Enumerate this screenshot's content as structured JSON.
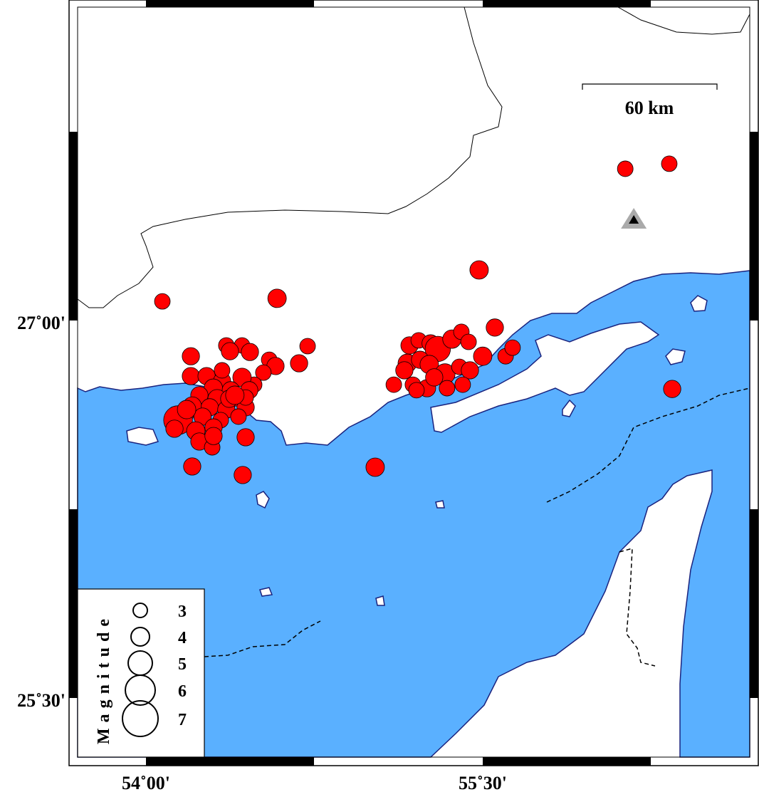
{
  "map": {
    "projection": "mercator",
    "lon_range": [
      53.7,
      56.7
    ],
    "lat_range": [
      25.25,
      27.95
    ],
    "land_color": "#ffffff",
    "sea_color": "#5ab0ff",
    "coast_color": "#1a237e",
    "event_color": "#ff0000",
    "station_color": "#000000",
    "axis": {
      "x_ticks": [
        {
          "value": 54.0,
          "label": "54˚00'"
        },
        {
          "value": 55.5,
          "label": "55˚30'"
        }
      ],
      "y_ticks": [
        {
          "value": 27.0,
          "label": "27˚00'"
        },
        {
          "value": 25.5,
          "label": "25˚30'"
        }
      ]
    },
    "scale_bar": {
      "label": "60 km",
      "km": 60
    },
    "legend": {
      "title": "Magnitude",
      "entries": [
        {
          "mag": 3,
          "label": "3"
        },
        {
          "mag": 4,
          "label": "4"
        },
        {
          "mag": 5,
          "label": "5"
        },
        {
          "mag": 6,
          "label": "6"
        },
        {
          "mag": 7,
          "label": "7"
        }
      ]
    },
    "station": {
      "lon": 56.173,
      "lat": 27.402,
      "icon": "triangle-icon"
    },
    "events": [
      [
        54.073,
        27.076,
        3.5
      ],
      [
        54.584,
        27.088,
        4.0
      ],
      [
        55.484,
        27.201,
        4.0
      ],
      [
        56.135,
        27.603,
        3.5
      ],
      [
        56.331,
        27.623,
        3.5
      ],
      [
        56.344,
        26.728,
        3.8
      ],
      [
        55.021,
        26.417,
        4.0
      ],
      [
        54.206,
        26.42,
        3.8
      ],
      [
        54.431,
        26.386,
        3.8
      ],
      [
        54.444,
        26.536,
        3.8
      ],
      [
        54.72,
        26.898,
        3.5
      ],
      [
        54.682,
        26.83,
        3.8
      ],
      [
        54.2,
        26.858,
        3.8
      ],
      [
        54.2,
        26.779,
        3.8
      ],
      [
        54.358,
        26.901,
        3.5
      ],
      [
        54.428,
        26.901,
        3.5
      ],
      [
        54.374,
        26.878,
        3.8
      ],
      [
        54.463,
        26.875,
        3.8
      ],
      [
        54.549,
        26.844,
        3.5
      ],
      [
        54.577,
        26.819,
        3.8
      ],
      [
        54.523,
        26.793,
        3.5
      ],
      [
        54.482,
        26.745,
        3.5
      ],
      [
        54.27,
        26.779,
        3.8
      ],
      [
        54.339,
        26.759,
        3.8
      ],
      [
        54.428,
        26.774,
        4.0
      ],
      [
        54.3,
        26.731,
        4.0
      ],
      [
        54.378,
        26.723,
        3.8
      ],
      [
        54.46,
        26.723,
        3.8
      ],
      [
        54.238,
        26.703,
        3.8
      ],
      [
        54.317,
        26.689,
        4.0
      ],
      [
        54.396,
        26.694,
        3.8
      ],
      [
        54.206,
        26.66,
        4.0
      ],
      [
        54.284,
        26.655,
        3.8
      ],
      [
        54.358,
        26.646,
        3.8
      ],
      [
        54.444,
        26.655,
        3.8
      ],
      [
        54.174,
        26.632,
        4.0
      ],
      [
        54.252,
        26.618,
        3.8
      ],
      [
        54.333,
        26.604,
        3.5
      ],
      [
        54.412,
        26.618,
        3.5
      ],
      [
        54.143,
        26.604,
        5.8
      ],
      [
        54.127,
        26.57,
        3.8
      ],
      [
        54.222,
        26.561,
        4.0
      ],
      [
        54.301,
        26.575,
        3.8
      ],
      [
        54.238,
        26.519,
        3.8
      ],
      [
        54.295,
        26.496,
        3.5
      ],
      [
        54.181,
        26.646,
        4.0
      ],
      [
        54.301,
        26.541,
        3.8
      ],
      [
        54.371,
        26.689,
        3.8
      ],
      [
        54.444,
        26.694,
        3.5
      ],
      [
        54.339,
        26.802,
        3.5
      ],
      [
        54.396,
        26.703,
        4.0
      ],
      [
        55.174,
        26.901,
        3.8
      ],
      [
        55.215,
        26.921,
        3.5
      ],
      [
        55.268,
        26.909,
        3.8
      ],
      [
        55.3,
        26.887,
        5.2
      ],
      [
        55.363,
        26.926,
        4.0
      ],
      [
        55.405,
        26.955,
        3.5
      ],
      [
        55.437,
        26.915,
        3.5
      ],
      [
        55.164,
        26.83,
        4.0
      ],
      [
        55.221,
        26.844,
        3.8
      ],
      [
        55.262,
        26.825,
        4.0
      ],
      [
        55.332,
        26.788,
        4.3
      ],
      [
        55.396,
        26.816,
        3.5
      ],
      [
        55.443,
        26.802,
        3.8
      ],
      [
        55.5,
        26.858,
        4.0
      ],
      [
        55.554,
        26.972,
        3.8
      ],
      [
        55.602,
        26.858,
        3.5
      ],
      [
        55.633,
        26.892,
        3.5
      ],
      [
        55.151,
        26.802,
        3.8
      ],
      [
        55.189,
        26.745,
        3.5
      ],
      [
        55.252,
        26.731,
        3.8
      ],
      [
        55.341,
        26.731,
        3.5
      ],
      [
        55.411,
        26.745,
        3.5
      ],
      [
        55.104,
        26.745,
        3.5
      ],
      [
        55.205,
        26.723,
        3.5
      ],
      [
        55.284,
        26.774,
        3.8
      ]
    ]
  }
}
